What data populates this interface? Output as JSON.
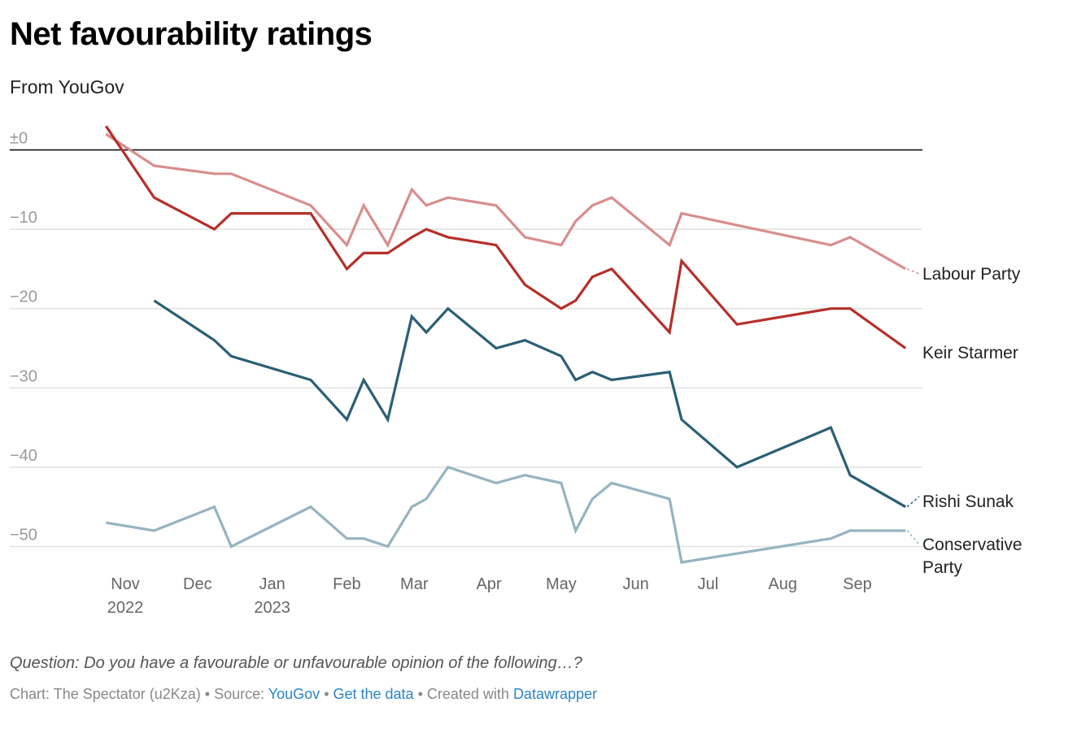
{
  "header": {
    "title": "Net favourability ratings",
    "subtitle": "From YouGov"
  },
  "footer": {
    "notes": "Question: Do you have a favourable or unfavourable opinion of the following…?",
    "credit_prefix": "Chart: The Spectator (u2Kza) • Source: ",
    "source_link": "YouGov",
    "sep1": " • ",
    "data_link": "Get the data",
    "sep2": " • Created with ",
    "tool_link": "Datawrapper"
  },
  "chart_data": {
    "type": "line",
    "title": "Net favourability ratings",
    "subtitle": "From YouGov",
    "xlabel": "",
    "ylabel": "",
    "ylim": [
      -53,
      3
    ],
    "yticks": [
      {
        "value": 0,
        "label": "±0"
      },
      {
        "value": -10,
        "label": "−10"
      },
      {
        "value": -20,
        "label": "−20"
      },
      {
        "value": -30,
        "label": "−30"
      },
      {
        "value": -40,
        "label": "−40"
      },
      {
        "value": -50,
        "label": "−50"
      }
    ],
    "xticks": [
      {
        "date": "2022-11-01",
        "label": "Nov",
        "sub": "2022"
      },
      {
        "date": "2022-12-01",
        "label": "Dec",
        "sub": ""
      },
      {
        "date": "2023-01-01",
        "label": "Jan",
        "sub": "2023"
      },
      {
        "date": "2023-02-01",
        "label": "Feb",
        "sub": ""
      },
      {
        "date": "2023-03-01",
        "label": "Mar",
        "sub": ""
      },
      {
        "date": "2023-04-01",
        "label": "Apr",
        "sub": ""
      },
      {
        "date": "2023-05-01",
        "label": "May",
        "sub": ""
      },
      {
        "date": "2023-06-01",
        "label": "Jun",
        "sub": ""
      },
      {
        "date": "2023-07-01",
        "label": "Jul",
        "sub": ""
      },
      {
        "date": "2023-08-01",
        "label": "Aug",
        "sub": ""
      },
      {
        "date": "2023-09-01",
        "label": "Sep",
        "sub": ""
      }
    ],
    "xrange": [
      "2022-10-24",
      "2023-09-21"
    ],
    "grid": true,
    "legend": "direct-labels-right",
    "series": [
      {
        "name": "Labour Party",
        "color": "#d88e8c",
        "points": [
          [
            "2022-10-24",
            2
          ],
          [
            "2022-11-13",
            -2
          ],
          [
            "2022-12-08",
            -3
          ],
          [
            "2022-12-15",
            -3
          ],
          [
            "2023-01-17",
            -7
          ],
          [
            "2023-02-01",
            -12
          ],
          [
            "2023-02-08",
            -7
          ],
          [
            "2023-02-18",
            -12
          ],
          [
            "2023-02-28",
            -5
          ],
          [
            "2023-03-06",
            -7
          ],
          [
            "2023-03-15",
            -6
          ],
          [
            "2023-04-04",
            -7
          ],
          [
            "2023-04-16",
            -11
          ],
          [
            "2023-05-01",
            -12
          ],
          [
            "2023-05-07",
            -9
          ],
          [
            "2023-05-14",
            -7
          ],
          [
            "2023-05-22",
            -6
          ],
          [
            "2023-06-15",
            -12
          ],
          [
            "2023-06-20",
            -8
          ],
          [
            "2023-08-21",
            -12
          ],
          [
            "2023-08-29",
            -11
          ],
          [
            "2023-09-21",
            -15
          ]
        ]
      },
      {
        "name": "Keir Starmer",
        "color": "#b5302a",
        "points": [
          [
            "2022-10-24",
            3
          ],
          [
            "2022-11-13",
            -6
          ],
          [
            "2022-12-08",
            -10
          ],
          [
            "2022-12-15",
            -8
          ],
          [
            "2023-01-17",
            -8
          ],
          [
            "2023-02-01",
            -15
          ],
          [
            "2023-02-08",
            -13
          ],
          [
            "2023-02-18",
            -13
          ],
          [
            "2023-02-28",
            -11
          ],
          [
            "2023-03-06",
            -10
          ],
          [
            "2023-03-15",
            -11
          ],
          [
            "2023-04-04",
            -12
          ],
          [
            "2023-04-16",
            -17
          ],
          [
            "2023-05-01",
            -20
          ],
          [
            "2023-05-07",
            -19
          ],
          [
            "2023-05-14",
            -16
          ],
          [
            "2023-05-22",
            -15
          ],
          [
            "2023-06-15",
            -23
          ],
          [
            "2023-06-20",
            -14
          ],
          [
            "2023-07-13",
            -22
          ],
          [
            "2023-08-21",
            -20
          ],
          [
            "2023-08-29",
            -20
          ],
          [
            "2023-09-21",
            -25
          ]
        ]
      },
      {
        "name": "Rishi Sunak",
        "color": "#2b5f75",
        "points": [
          [
            "2022-11-13",
            -19
          ],
          [
            "2022-12-08",
            -24
          ],
          [
            "2022-12-15",
            -26
          ],
          [
            "2023-01-17",
            -29
          ],
          [
            "2023-02-01",
            -34
          ],
          [
            "2023-02-08",
            -29
          ],
          [
            "2023-02-18",
            -34
          ],
          [
            "2023-02-28",
            -21
          ],
          [
            "2023-03-06",
            -23
          ],
          [
            "2023-03-15",
            -20
          ],
          [
            "2023-04-04",
            -25
          ],
          [
            "2023-04-16",
            -24
          ],
          [
            "2023-05-01",
            -26
          ],
          [
            "2023-05-07",
            -29
          ],
          [
            "2023-05-14",
            -28
          ],
          [
            "2023-05-22",
            -29
          ],
          [
            "2023-06-15",
            -28
          ],
          [
            "2023-06-20",
            -34
          ],
          [
            "2023-07-13",
            -40
          ],
          [
            "2023-08-21",
            -35
          ],
          [
            "2023-08-29",
            -41
          ],
          [
            "2023-09-21",
            -45
          ]
        ]
      },
      {
        "name": "Conservative Party",
        "color": "#95b4c1",
        "points": [
          [
            "2022-10-24",
            -47
          ],
          [
            "2022-11-13",
            -48
          ],
          [
            "2022-12-08",
            -45
          ],
          [
            "2022-12-15",
            -50
          ],
          [
            "2023-01-17",
            -45
          ],
          [
            "2023-02-01",
            -49
          ],
          [
            "2023-02-08",
            -49
          ],
          [
            "2023-02-18",
            -50
          ],
          [
            "2023-02-28",
            -45
          ],
          [
            "2023-03-06",
            -44
          ],
          [
            "2023-03-15",
            -40
          ],
          [
            "2023-04-04",
            -42
          ],
          [
            "2023-04-16",
            -41
          ],
          [
            "2023-05-01",
            -42
          ],
          [
            "2023-05-07",
            -48
          ],
          [
            "2023-05-14",
            -44
          ],
          [
            "2023-05-22",
            -42
          ],
          [
            "2023-06-15",
            -44
          ],
          [
            "2023-06-20",
            -52
          ],
          [
            "2023-08-21",
            -49
          ],
          [
            "2023-08-29",
            -48
          ],
          [
            "2023-09-21",
            -48
          ]
        ]
      }
    ],
    "labels": [
      {
        "series": "Labour Party",
        "lines": [
          "Labour Party"
        ]
      },
      {
        "series": "Keir Starmer",
        "lines": [
          "Keir Starmer"
        ]
      },
      {
        "series": "Rishi Sunak",
        "lines": [
          "Rishi Sunak"
        ]
      },
      {
        "series": "Conservative Party",
        "lines": [
          "Conservative",
          "Party"
        ]
      }
    ]
  }
}
